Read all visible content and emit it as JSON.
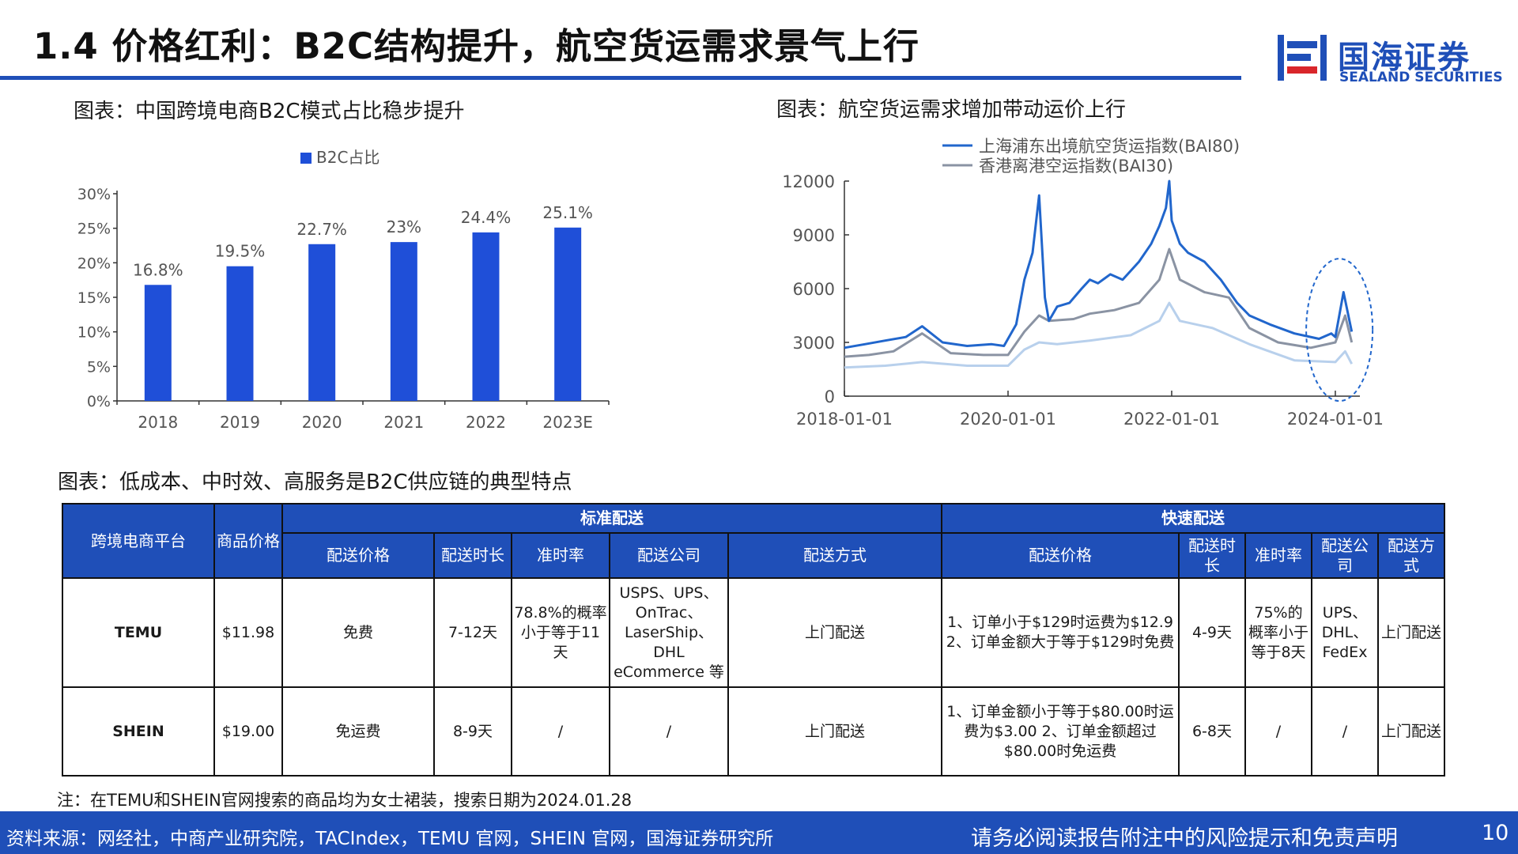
{
  "header": {
    "title": "1.4 价格红利：B2C结构提升，航空货运需求景气上行",
    "logo_cn": "国海证券",
    "logo_en": "SEALAND SECURITIES"
  },
  "colors": {
    "brand_blue": "#1f4fb8",
    "bar_blue": "#1f4fd8",
    "line_bai80": "#2166cc",
    "line_bai30": "#8a93a3",
    "line_third": "#b8d0ec"
  },
  "bar_section": {
    "title": "图表：中国跨境电商B2C模式占比稳步提升"
  },
  "line_section": {
    "title": "图表：航空货运需求增加带动运价上行"
  },
  "table_section": {
    "title": "图表：低成本、中时效、高服务是B2C供应链的典型特点"
  },
  "chart_data": [
    {
      "type": "bar",
      "title": "图表：中国跨境电商B2C模式占比稳步提升",
      "legend": [
        "B2C占比"
      ],
      "legend_position": "top",
      "categories": [
        "2018",
        "2019",
        "2020",
        "2021",
        "2022",
        "2023E"
      ],
      "values": [
        16.8,
        19.5,
        22.7,
        23.0,
        24.4,
        25.1
      ],
      "data_labels": [
        "16.8%",
        "19.5%",
        "22.7%",
        "23%",
        "24.4%",
        "25.1%"
      ],
      "ytick_labels": [
        "0%",
        "5%",
        "10%",
        "15%",
        "20%",
        "25%",
        "30%"
      ],
      "ylim": [
        0,
        30
      ],
      "grid": false
    },
    {
      "type": "line",
      "title": "图表：航空货运需求增加带动运价上行",
      "legend_position": "top",
      "xtick_labels": [
        "2018-01-01",
        "2020-01-01",
        "2022-01-01",
        "2024-01-01"
      ],
      "ytick_labels": [
        "0",
        "3000",
        "6000",
        "9000",
        "12000"
      ],
      "xlim": [
        2018.0,
        2024.3
      ],
      "ylim": [
        0,
        12000
      ],
      "grid": false,
      "series": [
        {
          "name": "上海浦东出境航空货运指数(BAI80)",
          "x": [
            2018.0,
            2018.25,
            2018.5,
            2018.75,
            2018.95,
            2019.2,
            2019.5,
            2019.8,
            2019.95,
            2020.1,
            2020.2,
            2020.3,
            2020.38,
            2020.45,
            2020.5,
            2020.6,
            2020.75,
            2020.9,
            2021.0,
            2021.1,
            2021.25,
            2021.4,
            2021.6,
            2021.75,
            2021.85,
            2021.93,
            2021.97,
            2022.0,
            2022.1,
            2022.2,
            2022.4,
            2022.6,
            2022.8,
            2022.95,
            2023.2,
            2023.5,
            2023.8,
            2023.95,
            2024.0,
            2024.1,
            2024.2
          ],
          "y": [
            2700,
            2900,
            3100,
            3300,
            3900,
            3000,
            2800,
            2900,
            2800,
            4000,
            6500,
            8000,
            11200,
            5500,
            4200,
            5000,
            5200,
            6000,
            6500,
            6300,
            6800,
            6500,
            7500,
            8500,
            9500,
            10500,
            12000,
            9800,
            8500,
            8000,
            7500,
            6500,
            5200,
            4500,
            4000,
            3500,
            3200,
            3500,
            3300,
            5800,
            3600
          ]
        },
        {
          "name": "香港离港空运指数(BAI30)",
          "x": [
            2018.0,
            2018.3,
            2018.6,
            2018.95,
            2019.3,
            2019.7,
            2020.0,
            2020.2,
            2020.38,
            2020.5,
            2020.8,
            2021.0,
            2021.3,
            2021.6,
            2021.85,
            2021.97,
            2022.1,
            2022.4,
            2022.7,
            2022.95,
            2023.3,
            2023.7,
            2024.0,
            2024.12,
            2024.2
          ],
          "y": [
            2200,
            2300,
            2500,
            3500,
            2400,
            2300,
            2300,
            3600,
            4500,
            4200,
            4300,
            4600,
            4800,
            5200,
            6500,
            8200,
            6500,
            5800,
            5500,
            3800,
            3000,
            2700,
            3000,
            4500,
            3000
          ]
        },
        {
          "name": "",
          "x": [
            2018.0,
            2018.5,
            2018.95,
            2019.5,
            2020.0,
            2020.2,
            2020.38,
            2020.6,
            2021.0,
            2021.5,
            2021.85,
            2021.97,
            2022.1,
            2022.5,
            2022.95,
            2023.5,
            2024.0,
            2024.12,
            2024.2
          ],
          "y": [
            1600,
            1700,
            1900,
            1700,
            1700,
            2600,
            3000,
            2900,
            3100,
            3400,
            4200,
            5200,
            4200,
            3800,
            2900,
            2000,
            1900,
            2500,
            1800
          ]
        }
      ]
    }
  ],
  "table": {
    "header": {
      "platform": "跨境电商平台",
      "price": "商品价格",
      "standard_group": "标准配送",
      "express_group": "快速配送",
      "std_cols": [
        "配送价格",
        "配送时长",
        "准时率",
        "配送公司",
        "配送方式"
      ],
      "exp_cols": [
        "配送价格",
        "配送时长",
        "准时率",
        "配送公司",
        "配送方式"
      ]
    },
    "rows": [
      {
        "platform": "TEMU",
        "price": "$11.98",
        "std_fee": "免费",
        "std_time": "7-12天",
        "std_ontime": "78.8%的概率小于等于11天",
        "std_carrier": "USPS、UPS、OnTrac、LaserShip、DHL eCommerce 等",
        "std_method": "上门配送",
        "exp_fee": "1、订单小于$129时运费为$12.9 2、订单金额大于等于$129时免费",
        "exp_time": "4-9天",
        "exp_ontime": "75%的概率小于等于8天",
        "exp_carrier": "UPS、DHL、FedEx",
        "exp_method": "上门配送"
      },
      {
        "platform": "SHEIN",
        "price": "$19.00",
        "std_fee": "免运费",
        "std_time": "8-9天",
        "std_ontime": "/",
        "std_carrier": "/",
        "std_method": "上门配送",
        "exp_fee": "1、订单金额小于等于$80.00时运费为$3.00 2、订单金额超过$80.00时免运费",
        "exp_time": "6-8天",
        "exp_ontime": "/",
        "exp_carrier": "/",
        "exp_method": "上门配送"
      }
    ]
  },
  "note": "注：在TEMU和SHEIN官网搜索的商品均为女士裙装，搜索日期为2024.01.28",
  "footer": {
    "source": "资料来源：网经社，中商产业研究院，TACIndex，TEMU 官网，SHEIN 官网，国海证券研究所",
    "disclaimer": "请务必阅读报告附注中的风险提示和免责声明",
    "page_number": "10"
  }
}
